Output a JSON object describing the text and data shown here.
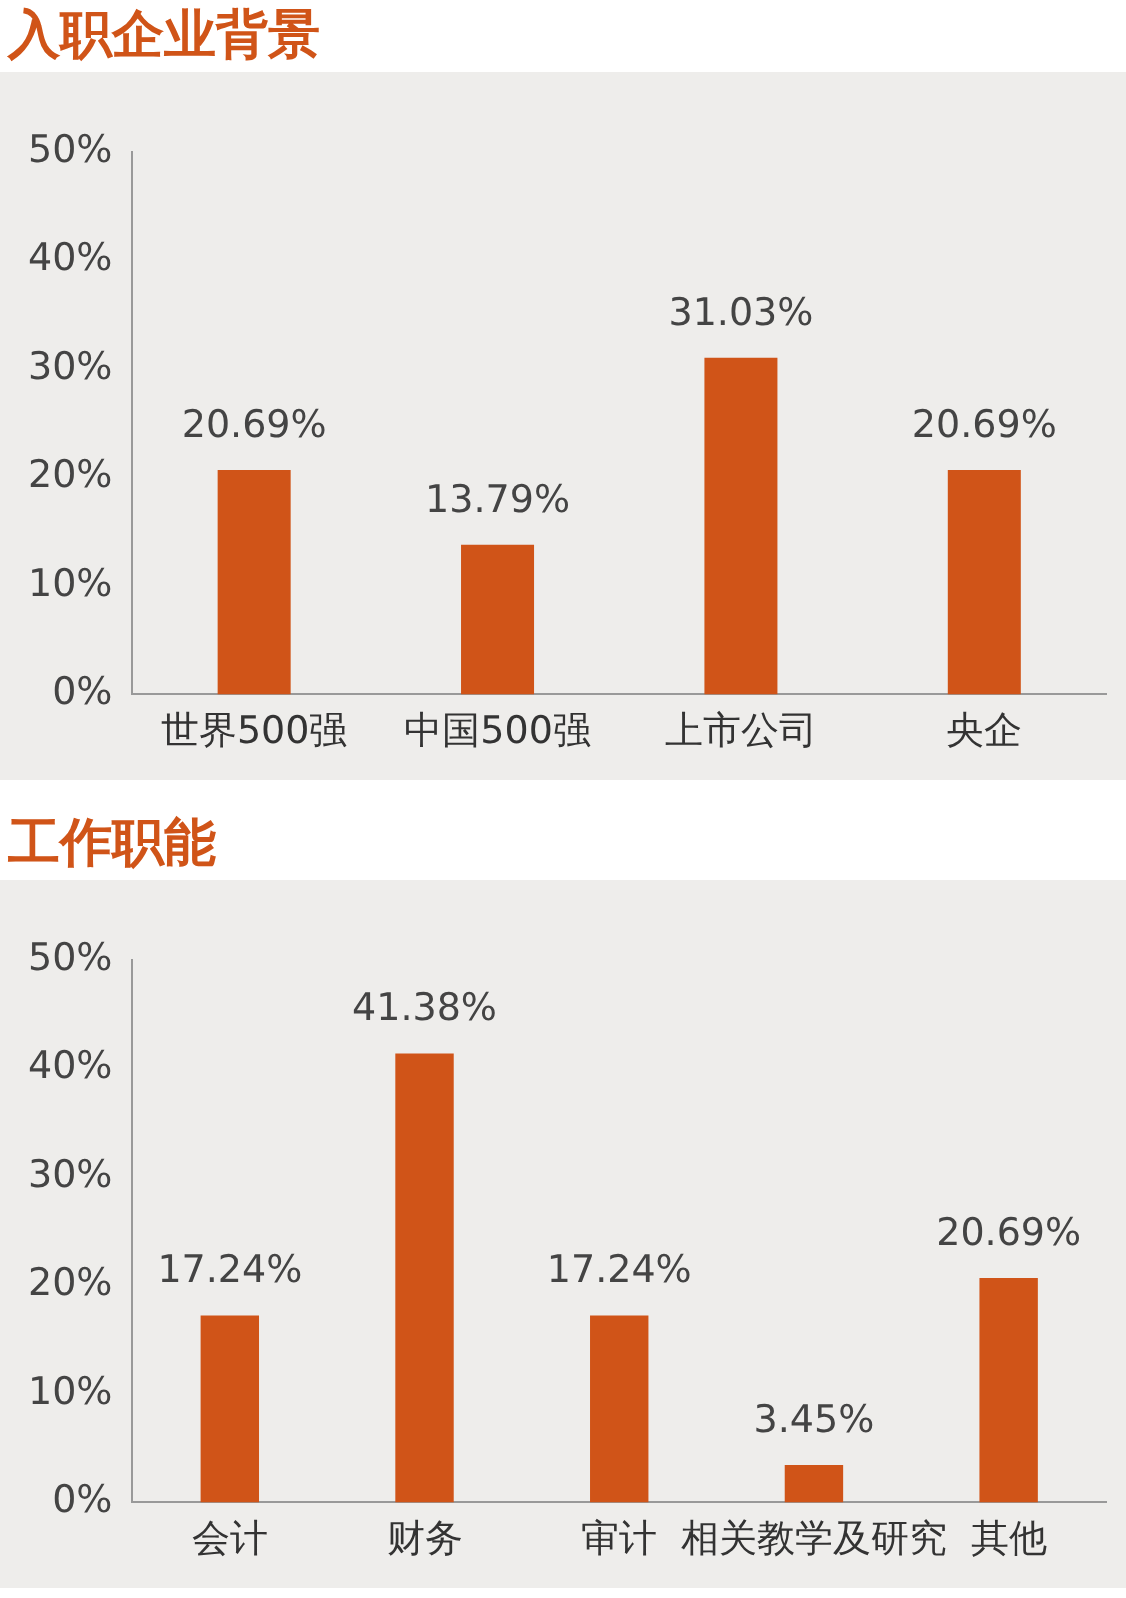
{
  "chart_data": [
    {
      "type": "bar",
      "title": "入职企业背景",
      "categories": [
        "世界500强",
        "中国500强",
        "上市公司",
        "央企"
      ],
      "values": [
        20.69,
        13.79,
        31.03,
        20.69
      ],
      "value_labels": [
        "20.69%",
        "13.79%",
        "31.03%",
        "20.69%"
      ],
      "color": "#d05418",
      "ylim": [
        0,
        50
      ],
      "yticks": [
        {
          "value": 0,
          "label": "0%"
        },
        {
          "value": 10,
          "label": "10%"
        },
        {
          "value": 20,
          "label": "20%"
        },
        {
          "value": 30,
          "label": "30%"
        },
        {
          "value": 40,
          "label": "40%"
        },
        {
          "value": 50,
          "label": "50%"
        }
      ]
    },
    {
      "type": "bar",
      "title": "工作职能",
      "categories": [
        "会计",
        "财务",
        "审计",
        "相关教学及研究",
        "其他"
      ],
      "values": [
        17.24,
        41.38,
        17.24,
        3.45,
        20.69
      ],
      "value_labels": [
        "17.24%",
        "41.38%",
        "17.24%",
        "3.45%",
        "20.69%"
      ],
      "color": "#d05418",
      "ylim": [
        0,
        50
      ],
      "yticks": [
        {
          "value": 0,
          "label": "0%"
        },
        {
          "value": 10,
          "label": "10%"
        },
        {
          "value": 20,
          "label": "20%"
        },
        {
          "value": 30,
          "label": "30%"
        },
        {
          "value": 40,
          "label": "40%"
        },
        {
          "value": 50,
          "label": "50%"
        }
      ]
    }
  ]
}
